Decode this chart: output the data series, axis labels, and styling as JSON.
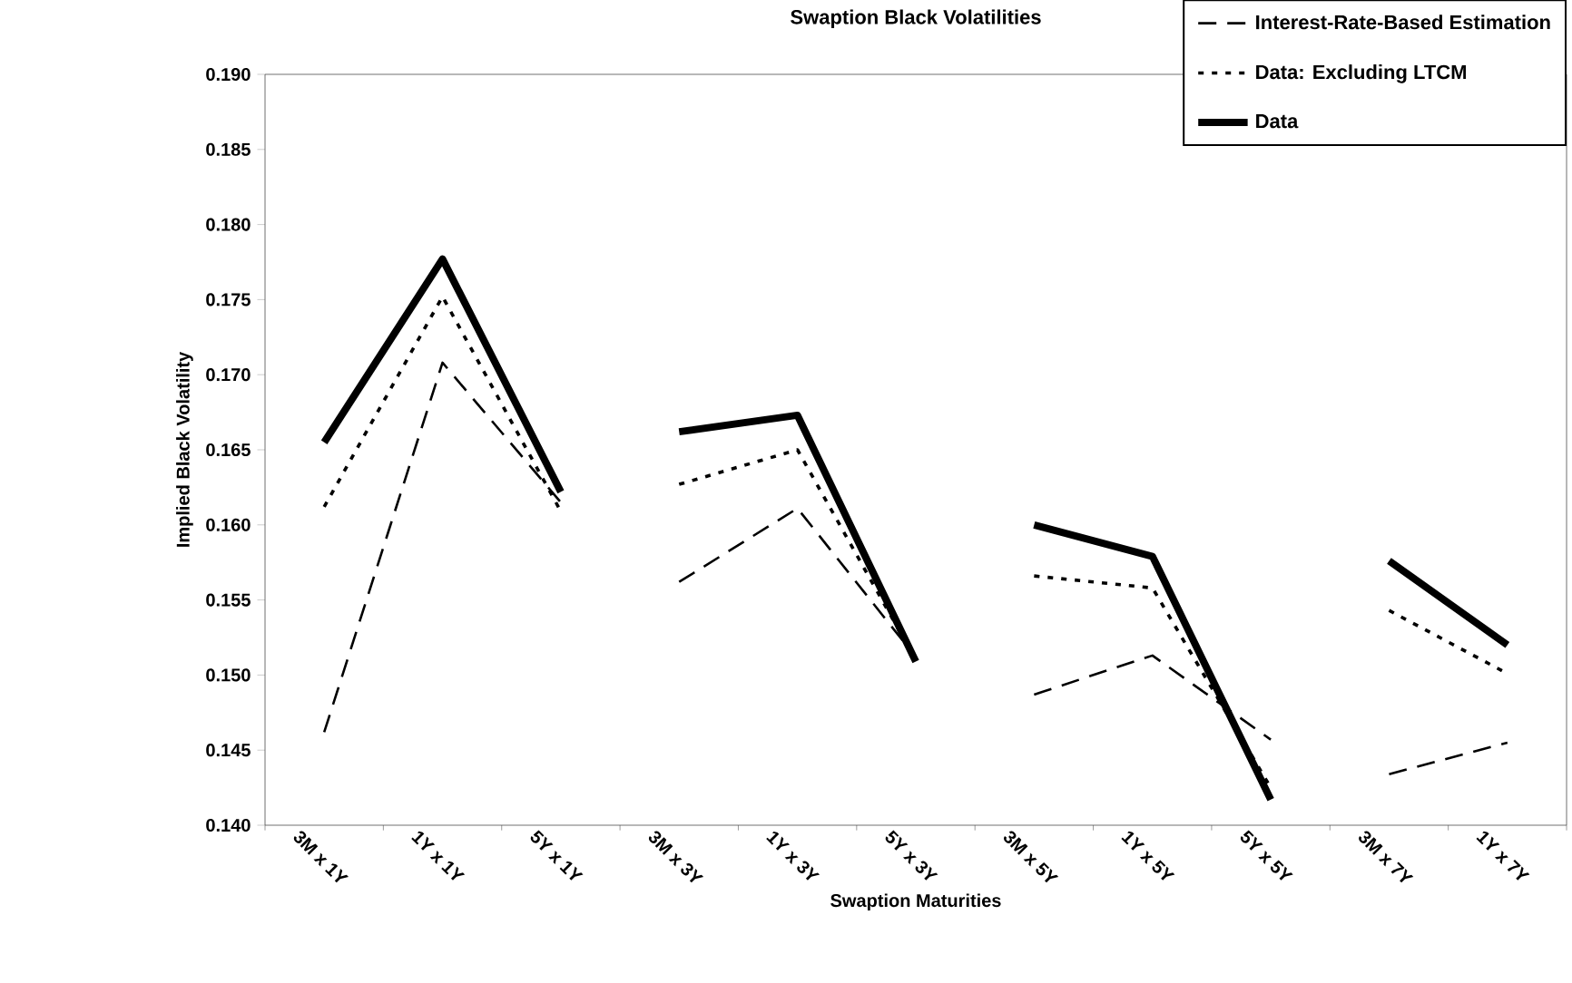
{
  "chart_data": {
    "type": "line",
    "title": "Swaption Black Volatilities",
    "xlabel": "Swaption Maturities",
    "ylabel": "Implied Black Volatility",
    "categories": [
      "3M x 1Y",
      "1Y x 1Y",
      "5Y x 1Y",
      "3M x 3Y",
      "1Y x 3Y",
      "5Y x 3Y",
      "3M x 5Y",
      "1Y x 5Y",
      "5Y x 5Y",
      "3M x 7Y",
      "1Y x 7Y"
    ],
    "ylim": [
      0.14,
      0.19
    ],
    "yticks": [
      {
        "value": 0.14,
        "label": "0.140"
      },
      {
        "value": 0.145,
        "label": "0.145"
      },
      {
        "value": 0.15,
        "label": "0.150"
      },
      {
        "value": 0.155,
        "label": "0.155"
      },
      {
        "value": 0.16,
        "label": "0.160"
      },
      {
        "value": 0.165,
        "label": "0.165"
      },
      {
        "value": 0.17,
        "label": "0.170"
      },
      {
        "value": 0.175,
        "label": "0.175"
      },
      {
        "value": 0.18,
        "label": "0.180"
      },
      {
        "value": 0.185,
        "label": "0.185"
      },
      {
        "value": 0.19,
        "label": "0.190"
      }
    ],
    "legend": "top right",
    "grid": false,
    "series": [
      {
        "name": "Interest-Rate-Based Estimation",
        "color": "#000000",
        "line_style": "dashed",
        "values": [
          0.1462,
          0.1708,
          0.1615,
          null,
          null,
          null,
          null,
          null,
          null,
          null,
          null
        ]
      },
      {
        "color": "#000000",
        "line_style": "dashed",
        "values": [
          null,
          null,
          null,
          0.1562,
          0.1611,
          0.1512,
          null,
          null,
          null,
          null,
          null
        ]
      },
      {
        "color": "#000000",
        "line_style": "dashed",
        "values": [
          null,
          null,
          null,
          null,
          null,
          null,
          0.1487,
          0.1513,
          0.1457,
          null,
          null
        ]
      },
      {
        "color": "#000000",
        "line_style": "dashed",
        "values": [
          null,
          null,
          null,
          null,
          null,
          null,
          null,
          null,
          null,
          0.1434,
          0.1455
        ]
      },
      {
        "name": "Data: Excluding LTCM",
        "color": "#000000",
        "line_style": "dotted",
        "values": [
          0.1612,
          0.1752,
          0.1609,
          null,
          null,
          null,
          null,
          null,
          null,
          null,
          null
        ]
      },
      {
        "color": "#000000",
        "line_style": "dotted",
        "values": [
          null,
          null,
          null,
          0.1627,
          0.165,
          0.151,
          null,
          null,
          null,
          null,
          null
        ]
      },
      {
        "color": "#000000",
        "line_style": "dotted",
        "values": [
          null,
          null,
          null,
          null,
          null,
          null,
          0.1566,
          0.1558,
          0.1425,
          null,
          null
        ]
      },
      {
        "color": "#000000",
        "line_style": "dotted",
        "values": [
          null,
          null,
          null,
          null,
          null,
          null,
          null,
          null,
          null,
          0.1543,
          0.1501
        ]
      },
      {
        "name": "Data",
        "color": "#000000",
        "line_style": "solid",
        "values": [
          0.1655,
          0.1777,
          0.1622,
          null,
          null,
          null,
          null,
          null,
          null,
          null,
          null
        ]
      },
      {
        "color": "#000000",
        "line_style": "solid",
        "values": [
          null,
          null,
          null,
          0.1662,
          0.1673,
          0.1509,
          null,
          null,
          null,
          null,
          null
        ]
      },
      {
        "color": "#000000",
        "line_style": "solid",
        "values": [
          null,
          null,
          null,
          null,
          null,
          null,
          0.16,
          0.1579,
          0.1417,
          null,
          null
        ]
      },
      {
        "color": "#000000",
        "line_style": "solid",
        "values": [
          null,
          null,
          null,
          null,
          null,
          null,
          null,
          null,
          null,
          0.1576,
          0.152
        ]
      }
    ]
  }
}
